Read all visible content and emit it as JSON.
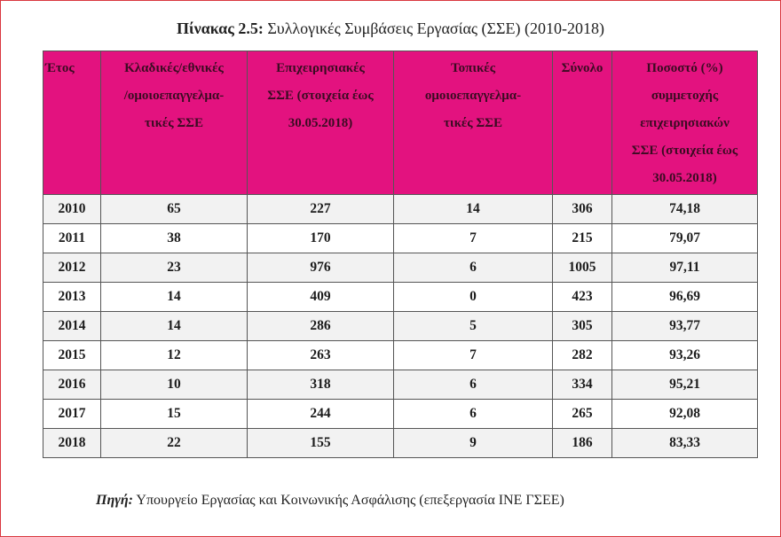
{
  "title": {
    "label": "Πίνακας 2.5:",
    "text": "Συλλογικές Συμβάσεις Εργασίας (ΣΣΕ) (2010-2018)"
  },
  "table": {
    "header": [
      [
        "Έτος"
      ],
      [
        "Κλαδικές/εθνικές",
        "/ομοιοεπαγγελμα-",
        "τικές ΣΣΕ"
      ],
      [
        "Επιχειρησιακές",
        "ΣΣΕ (στοιχεία έως",
        "30.05.2018)"
      ],
      [
        "Τοπικές",
        "ομοιοεπαγγελμα-",
        "τικές ΣΣΕ"
      ],
      [
        "Σύνολο"
      ],
      [
        "Ποσοστό (%)",
        "συμμετοχής",
        "επιχειρησιακών",
        "ΣΣΕ (στοιχεία έως",
        "30.05.2018)"
      ]
    ],
    "rows": [
      [
        "2010",
        "65",
        "227",
        "14",
        "306",
        "74,18"
      ],
      [
        "2011",
        "38",
        "170",
        "7",
        "215",
        "79,07"
      ],
      [
        "2012",
        "23",
        "976",
        "6",
        "1005",
        "97,11"
      ],
      [
        "2013",
        "14",
        "409",
        "0",
        "423",
        "96,69"
      ],
      [
        "2014",
        "14",
        "286",
        "5",
        "305",
        "93,77"
      ],
      [
        "2015",
        "12",
        "263",
        "7",
        "282",
        "93,26"
      ],
      [
        "2016",
        "10",
        "318",
        "6",
        "334",
        "95,21"
      ],
      [
        "2017",
        "15",
        "244",
        "6",
        "265",
        "92,08"
      ],
      [
        "2018",
        "22",
        "155",
        "9",
        "186",
        "83,33"
      ]
    ]
  },
  "source": {
    "label": "Πηγή:",
    "text": "Υπουργείο Εργασίας και Κοινωνικής Ασφάλισης (επεξεργασία ΙΝΕ ΓΣΕΕ)"
  }
}
